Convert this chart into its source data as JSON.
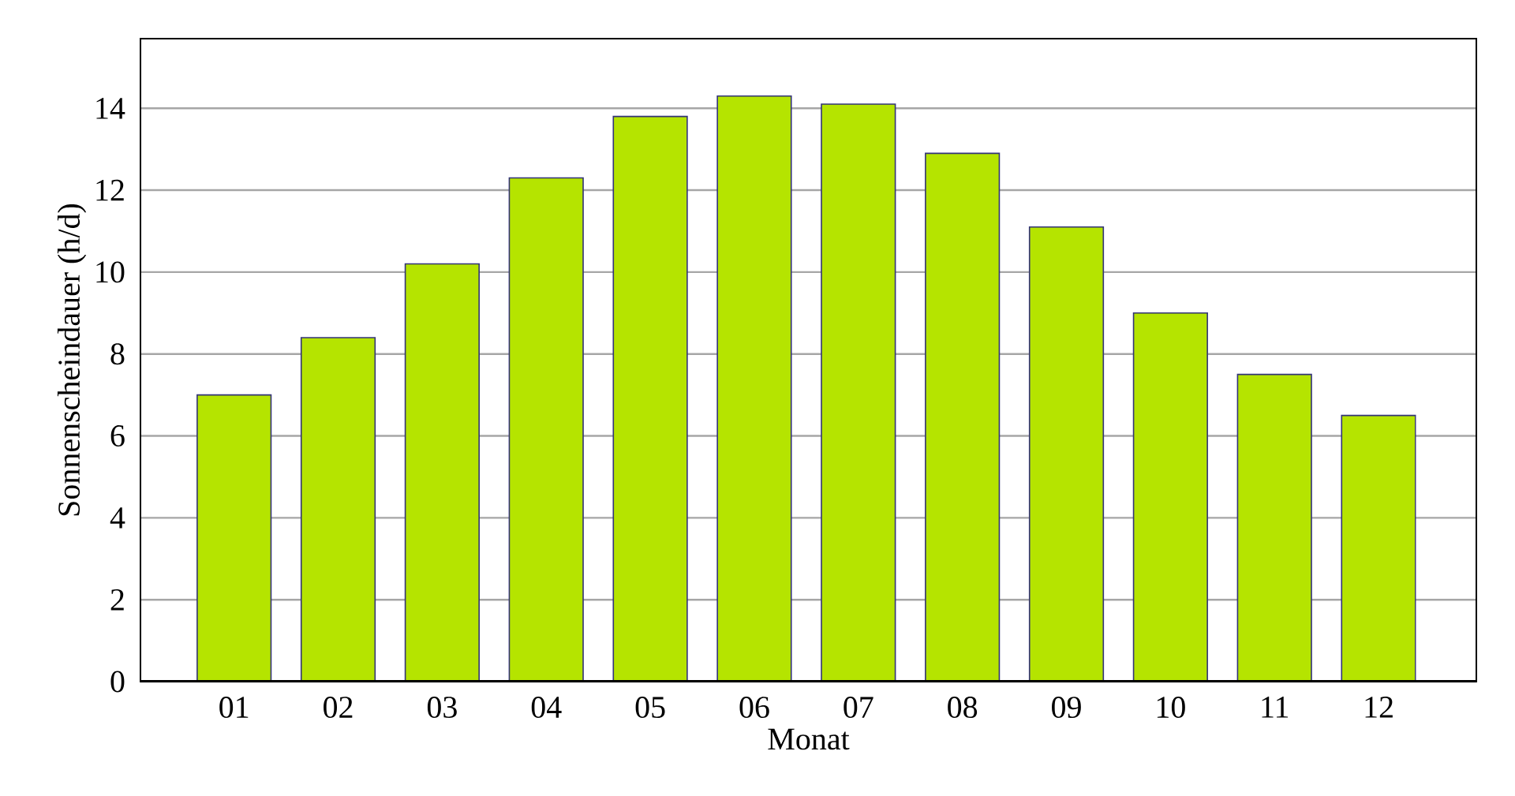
{
  "chart_data": {
    "type": "bar",
    "xlabel": "Monat",
    "ylabel": "Sonnenscheindauer (h/d)",
    "categories": [
      "01",
      "02",
      "03",
      "04",
      "05",
      "06",
      "07",
      "08",
      "09",
      "10",
      "11",
      "12"
    ],
    "values": [
      7.0,
      8.4,
      10.2,
      12.3,
      13.8,
      14.3,
      14.1,
      12.9,
      11.1,
      9.0,
      7.5,
      6.5
    ],
    "color": "#b5e400",
    "ylim": [
      0,
      15.7
    ],
    "yticks": [
      0,
      2,
      4,
      6,
      8,
      10,
      12,
      14
    ],
    "grid": "y"
  }
}
